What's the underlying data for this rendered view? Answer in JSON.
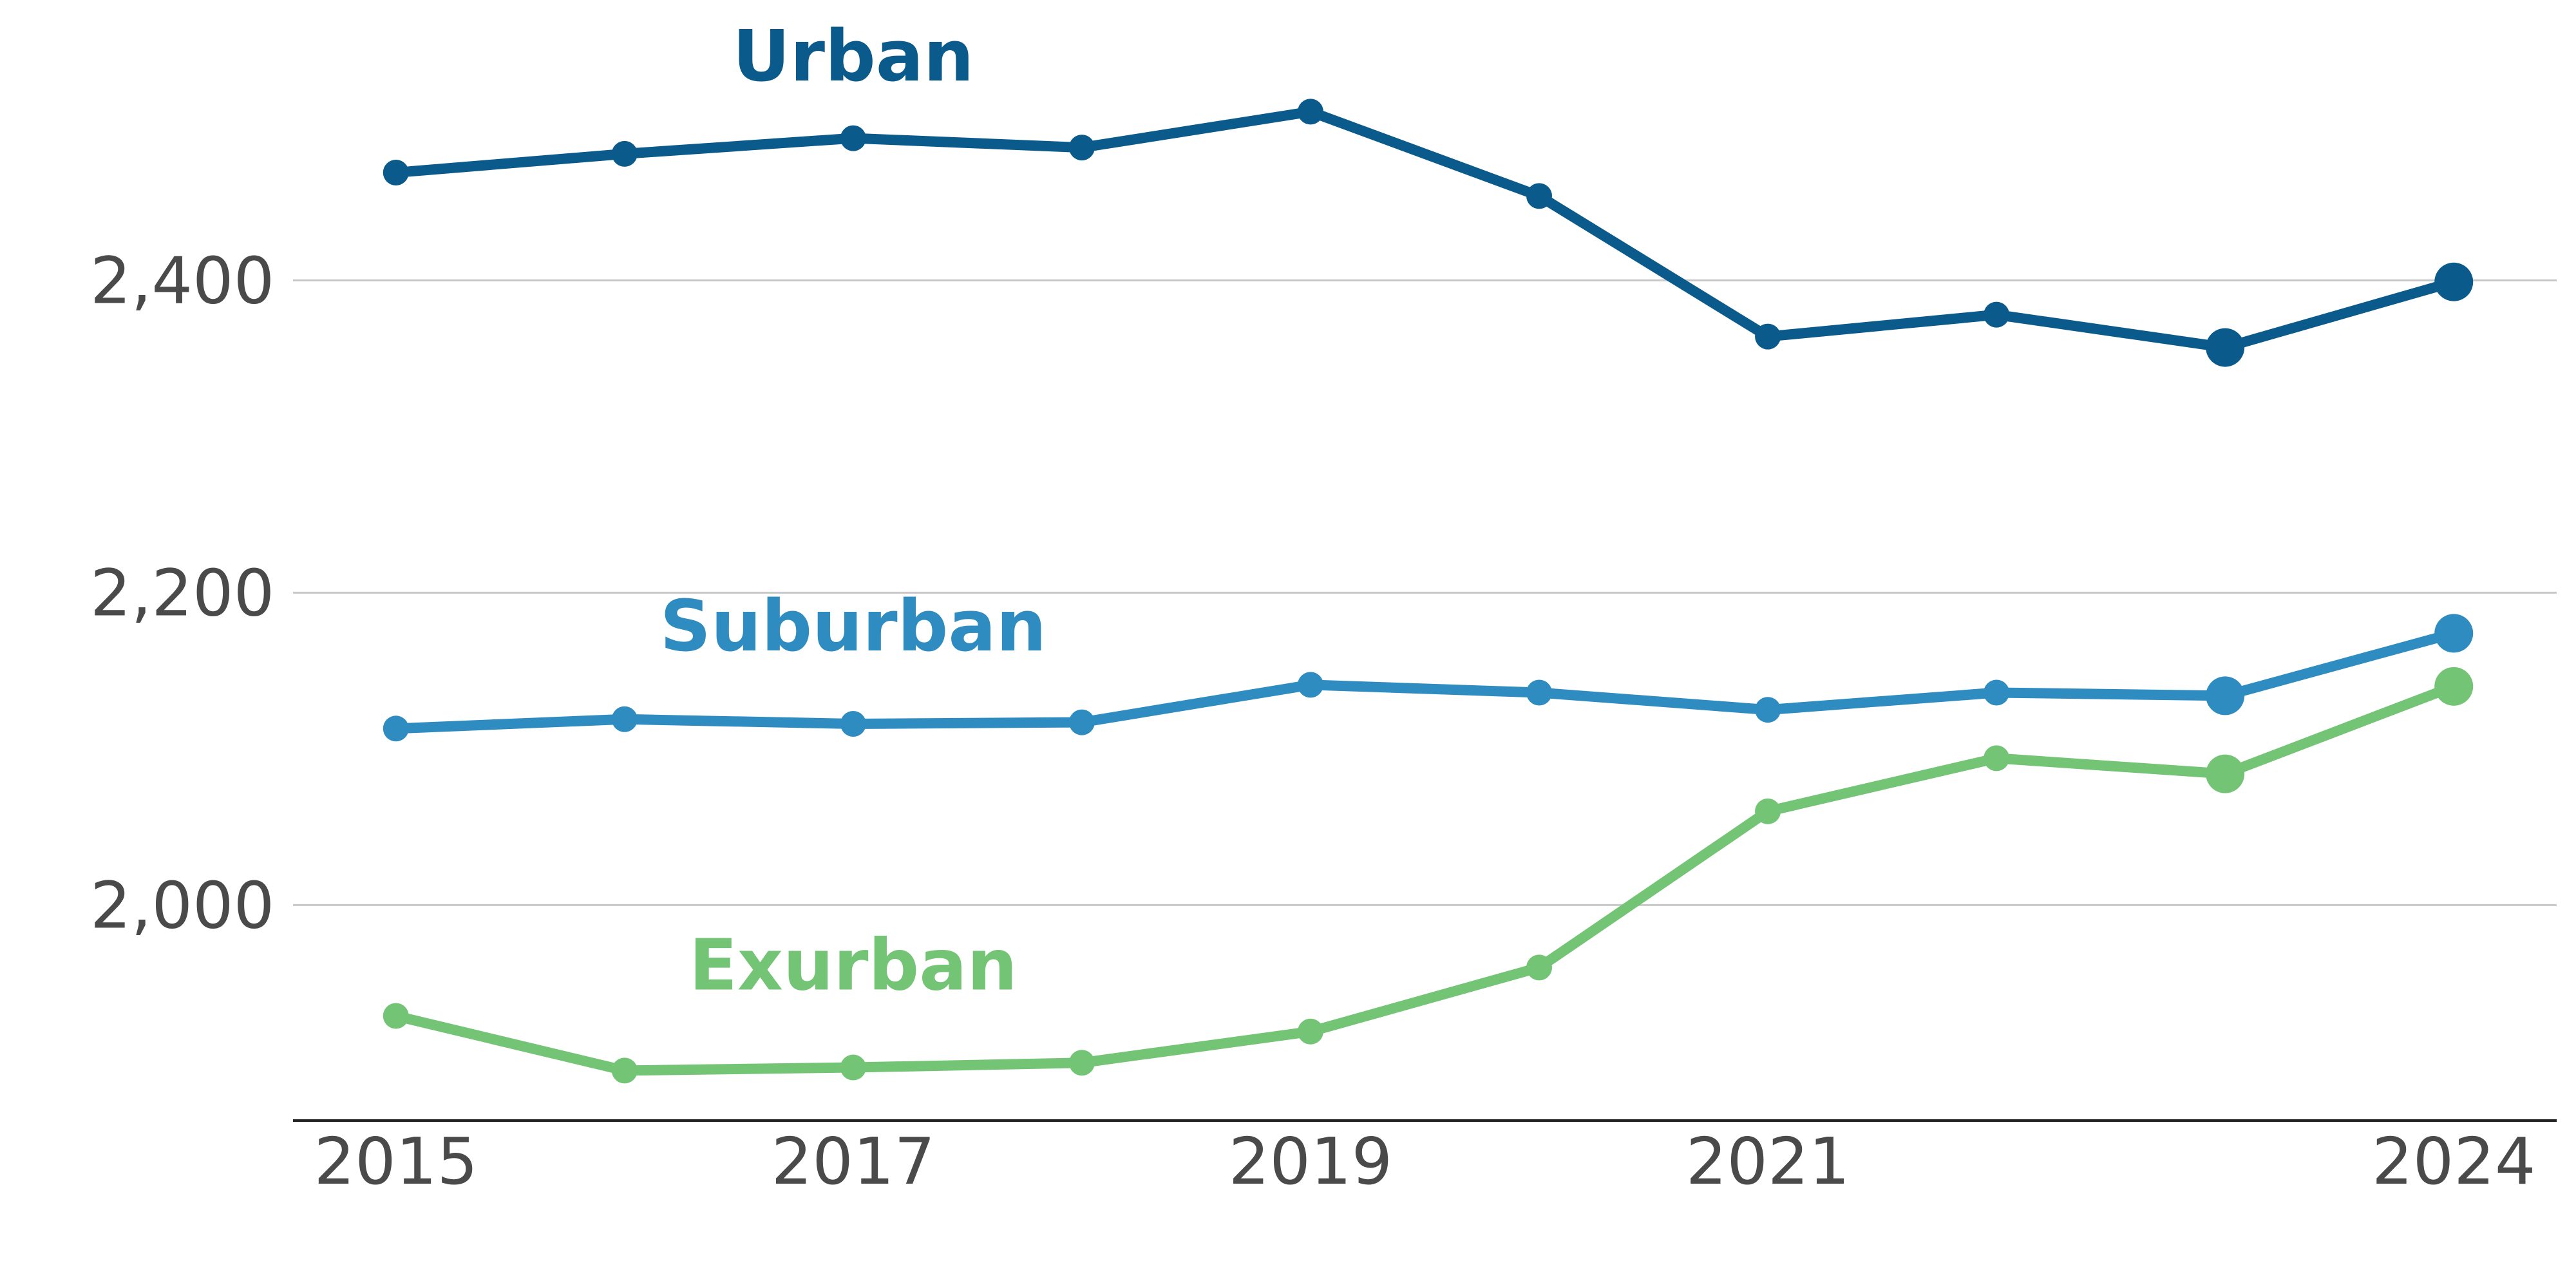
{
  "chart_data": {
    "type": "line",
    "title": "",
    "xlabel": "",
    "ylabel": "",
    "x": [
      2015,
      2016,
      2017,
      2018,
      2019,
      2020,
      2021,
      2022,
      2023,
      2024
    ],
    "x_tick_labels": [
      "2015",
      "2017",
      "2019",
      "2021",
      "2024"
    ],
    "x_tick_values": [
      2015,
      2017,
      2019,
      2021,
      2024
    ],
    "y_tick_labels": [
      "2,000",
      "2,200",
      "2,400"
    ],
    "y_tick_values": [
      2000,
      2200,
      2400
    ],
    "ylim": [
      1862,
      2563
    ],
    "xlim": [
      2014.55,
      2024.45
    ],
    "grid": true,
    "highlight_from_index": 8,
    "series": [
      {
        "name": "Urban",
        "color": "#0b5a8c",
        "label_x": 2017,
        "label_y": 2528,
        "values": [
          2469,
          2481,
          2491,
          2485,
          2508,
          2454,
          2364,
          2378,
          2357,
          2399
        ]
      },
      {
        "name": "Suburban",
        "color": "#2e8cc0",
        "label_x": 2017,
        "label_y": 2163,
        "values": [
          2113,
          2119,
          2116,
          2117,
          2141,
          2136,
          2125,
          2136,
          2134,
          2174
        ]
      },
      {
        "name": "Exurban",
        "color": "#74c476",
        "label_x": 2017,
        "label_y": 1946,
        "values": [
          1929,
          1894,
          1896,
          1899,
          1919,
          1960,
          2060,
          2094,
          2084,
          2140
        ]
      }
    ]
  }
}
